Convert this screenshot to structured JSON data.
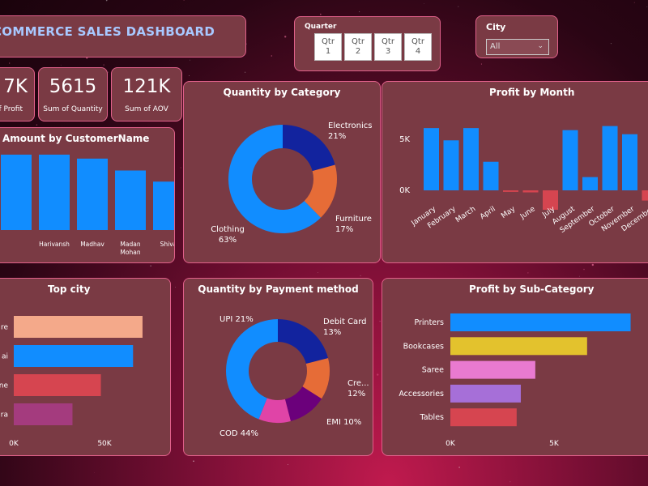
{
  "header": {
    "title": "COMMERCE SALES DASHBOARD"
  },
  "quarter_slicer": {
    "label": "Quarter",
    "options": [
      [
        "Qtr",
        "1"
      ],
      [
        "Qtr",
        "2"
      ],
      [
        "Qtr",
        "3"
      ],
      [
        "Qtr",
        "4"
      ]
    ]
  },
  "city_slicer": {
    "label": "City",
    "selected": "All"
  },
  "kpis": [
    {
      "value": "7K",
      "label": "of Profit"
    },
    {
      "value": "5615",
      "label": "Sum of Quantity"
    },
    {
      "value": "121K",
      "label": "Sum of AOV"
    }
  ],
  "colors": {
    "blue": "#118dff",
    "navy": "#12239e",
    "orange": "#e66c37",
    "purple": "#6b007b",
    "pink": "#e044a7",
    "red": "#d64550",
    "peach": "#f4a98a",
    "magenta": "#a43b7e",
    "yellow": "#e3c22d",
    "lilac": "#a66fd8",
    "hotpink": "#e97ad0"
  },
  "chart_data": [
    {
      "id": "amount-by-customer",
      "type": "bar",
      "title": "Amount by CustomerName",
      "categories": [
        "",
        "Harivansh",
        "Madhav",
        "Madan Mohan",
        "Shiva"
      ],
      "values": [
        95,
        95,
        90,
        75,
        61
      ],
      "ylim": [
        0,
        100
      ]
    },
    {
      "id": "quantity-by-category",
      "type": "pie",
      "title": "Quantity by Category",
      "slices": [
        {
          "label": "Electronics",
          "pct": "21%",
          "value": 21,
          "color": "#12239e"
        },
        {
          "label": "Furniture",
          "pct": "17%",
          "value": 17,
          "color": "#e66c37"
        },
        {
          "label": "Clothing",
          "pct": "63%",
          "value": 63,
          "color": "#118dff"
        }
      ]
    },
    {
      "id": "profit-by-month",
      "type": "bar",
      "title": "Profit by Month",
      "categories": [
        "January",
        "February",
        "March",
        "April",
        "May",
        "June",
        "July",
        "August",
        "September",
        "October",
        "November",
        "December"
      ],
      "values": [
        6100,
        4900,
        6100,
        2800,
        -150,
        -200,
        -1900,
        5900,
        1300,
        6300,
        5500,
        -1000
      ],
      "yticks": [
        "0K",
        "5K"
      ],
      "ylim": [
        -2500,
        8000
      ]
    },
    {
      "id": "top-city",
      "type": "bar",
      "title": "Top city",
      "categories": [
        "re",
        "ai",
        "ne",
        "ra"
      ],
      "values": [
        68,
        63,
        46,
        31
      ],
      "colors": [
        "#f4a98a",
        "#118dff",
        "#d64550",
        "#a43b7e"
      ],
      "xticks": [
        "0K",
        "50K"
      ],
      "xlim": [
        0,
        80
      ]
    },
    {
      "id": "quantity-by-payment",
      "type": "pie",
      "title": "Quantity by Payment method",
      "slices": [
        {
          "label": "UPI",
          "pct": "21%",
          "value": 21,
          "color": "#12239e"
        },
        {
          "label": "Debit Card",
          "pct": "13%",
          "value": 13,
          "color": "#e66c37"
        },
        {
          "label": "Cre...",
          "pct": "12%",
          "value": 12,
          "color": "#6b007b"
        },
        {
          "label": "EMI",
          "pct": "10%",
          "value": 10,
          "color": "#e044a7"
        },
        {
          "label": "COD",
          "pct": "44%",
          "value": 44,
          "color": "#118dff"
        }
      ]
    },
    {
      "id": "profit-by-subcategory",
      "type": "bar",
      "title": "Profit by Sub-Category",
      "categories": [
        "Printers",
        "Bookcases",
        "Saree",
        "Accessories",
        "Tables"
      ],
      "values": [
        8700,
        6600,
        4100,
        3400,
        3200
      ],
      "colors": [
        "#118dff",
        "#e3c22d",
        "#e97ad0",
        "#a66fd8",
        "#d64550"
      ],
      "xticks": [
        "0K",
        "5K"
      ],
      "xlim": [
        0,
        9500
      ]
    }
  ]
}
